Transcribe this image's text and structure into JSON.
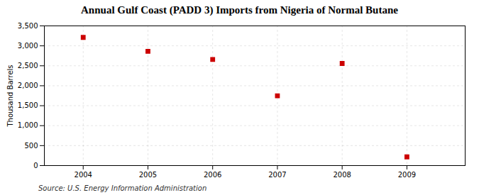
{
  "chart_data": {
    "type": "scatter",
    "title": "Annual Gulf Coast (PADD 3) Imports from Nigeria of Normal Butane",
    "ylabel": "Thousand Barrels",
    "annotations": [
      "Source: U.S. Energy Information Administration"
    ],
    "x": [
      2004,
      2005,
      2006,
      2007,
      2008,
      2009
    ],
    "values": [
      3211,
      2863,
      2659,
      1747,
      2558,
      218
    ],
    "color": "#cc0000",
    "marker": "square",
    "xlim": [
      2003.4,
      2009.9
    ],
    "xticks": [
      2004,
      2005,
      2006,
      2007,
      2008,
      2009
    ],
    "ylim": [
      0,
      3500
    ],
    "yticks": [
      0,
      500,
      {
        "value": 1000,
        "label": "1,000"
      },
      {
        "value": 1500,
        "label": "1,500"
      },
      {
        "value": 2000,
        "label": "2,000"
      },
      {
        "value": 2500,
        "label": "2,500"
      },
      {
        "value": 3000,
        "label": "3,000"
      },
      {
        "value": 3500,
        "label": "3,500"
      }
    ],
    "grid": true
  }
}
